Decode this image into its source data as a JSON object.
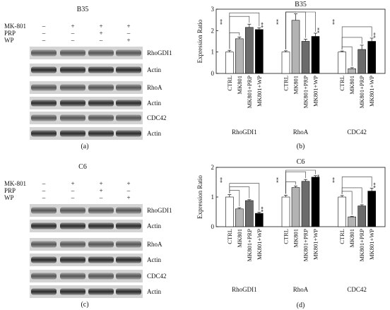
{
  "panel_a": {
    "letter": "(a)",
    "cell_line": "B35",
    "treatments": [
      {
        "label": "MK-801",
        "marks": [
          "–",
          "+",
          "+",
          "+"
        ]
      },
      {
        "label": "PRP",
        "marks": [
          "–",
          "–",
          "+",
          "–"
        ]
      },
      {
        "label": "WP",
        "marks": [
          "–",
          "–",
          "–",
          "+"
        ]
      }
    ],
    "blot_labels": [
      "RhoGDI1",
      "Actin",
      "RhoA",
      "Actin",
      "CDC42",
      "Actin"
    ]
  },
  "panel_c": {
    "letter": "(c)",
    "cell_line": "C6",
    "treatments": [
      {
        "label": "MK-801",
        "marks": [
          "–",
          "+",
          "+",
          "+"
        ]
      },
      {
        "label": "PRP",
        "marks": [
          "–",
          "–",
          "+",
          "–"
        ]
      },
      {
        "label": "WP",
        "marks": [
          "–",
          "–",
          "–",
          "+"
        ]
      }
    ],
    "blot_labels": [
      "RhoGDI1",
      "Actin",
      "RhoA",
      "Actin",
      "CDC42",
      "Actin"
    ]
  },
  "colors": {
    "CTRL": "#ffffff",
    "MK801": "#b3b3b3",
    "MK801+PRP": "#6b6b6b",
    "MK801+WP": "#000000"
  },
  "chart_data": [
    {
      "type": "bar",
      "panel": "(b)",
      "title": "B35",
      "ylabel": "Expression Ratio",
      "ylim": [
        0,
        3
      ],
      "yticks": [
        0,
        1,
        2,
        3
      ],
      "groups": [
        "RhoGDI1",
        "RhoA",
        "CDC42"
      ],
      "categories": [
        "CTRL",
        "MK801",
        "MK801+PRP",
        "MK801+WP"
      ],
      "values": [
        [
          1.0,
          1.62,
          2.15,
          2.05
        ],
        [
          1.0,
          2.48,
          1.5,
          1.73
        ],
        [
          1.0,
          0.22,
          1.12,
          1.5
        ]
      ],
      "errors": [
        [
          0.08,
          0.08,
          0.15,
          0.08
        ],
        [
          0.06,
          0.3,
          0.1,
          0.15
        ],
        [
          0.05,
          0.05,
          0.2,
          0.15
        ]
      ],
      "significance": "**"
    },
    {
      "type": "bar",
      "panel": "(d)",
      "title": "C6",
      "ylabel": "Expression Ratio",
      "ylim": [
        0,
        2
      ],
      "yticks": [
        0,
        1,
        2
      ],
      "groups": [
        "RhoGDI1",
        "RhoA",
        "CDC42"
      ],
      "categories": [
        "CTRL",
        "MK801",
        "MK801+PRP",
        "MK801+WP"
      ],
      "values": [
        [
          1.0,
          0.6,
          0.88,
          0.45
        ],
        [
          1.0,
          1.32,
          1.53,
          1.67
        ],
        [
          1.0,
          0.33,
          0.7,
          1.2
        ]
      ],
      "errors": [
        [
          0.08,
          0.04,
          0.03,
          0.04
        ],
        [
          0.06,
          0.05,
          0.06,
          0.05
        ],
        [
          0.05,
          0.02,
          0.04,
          0.1
        ]
      ],
      "significance": "**"
    }
  ]
}
